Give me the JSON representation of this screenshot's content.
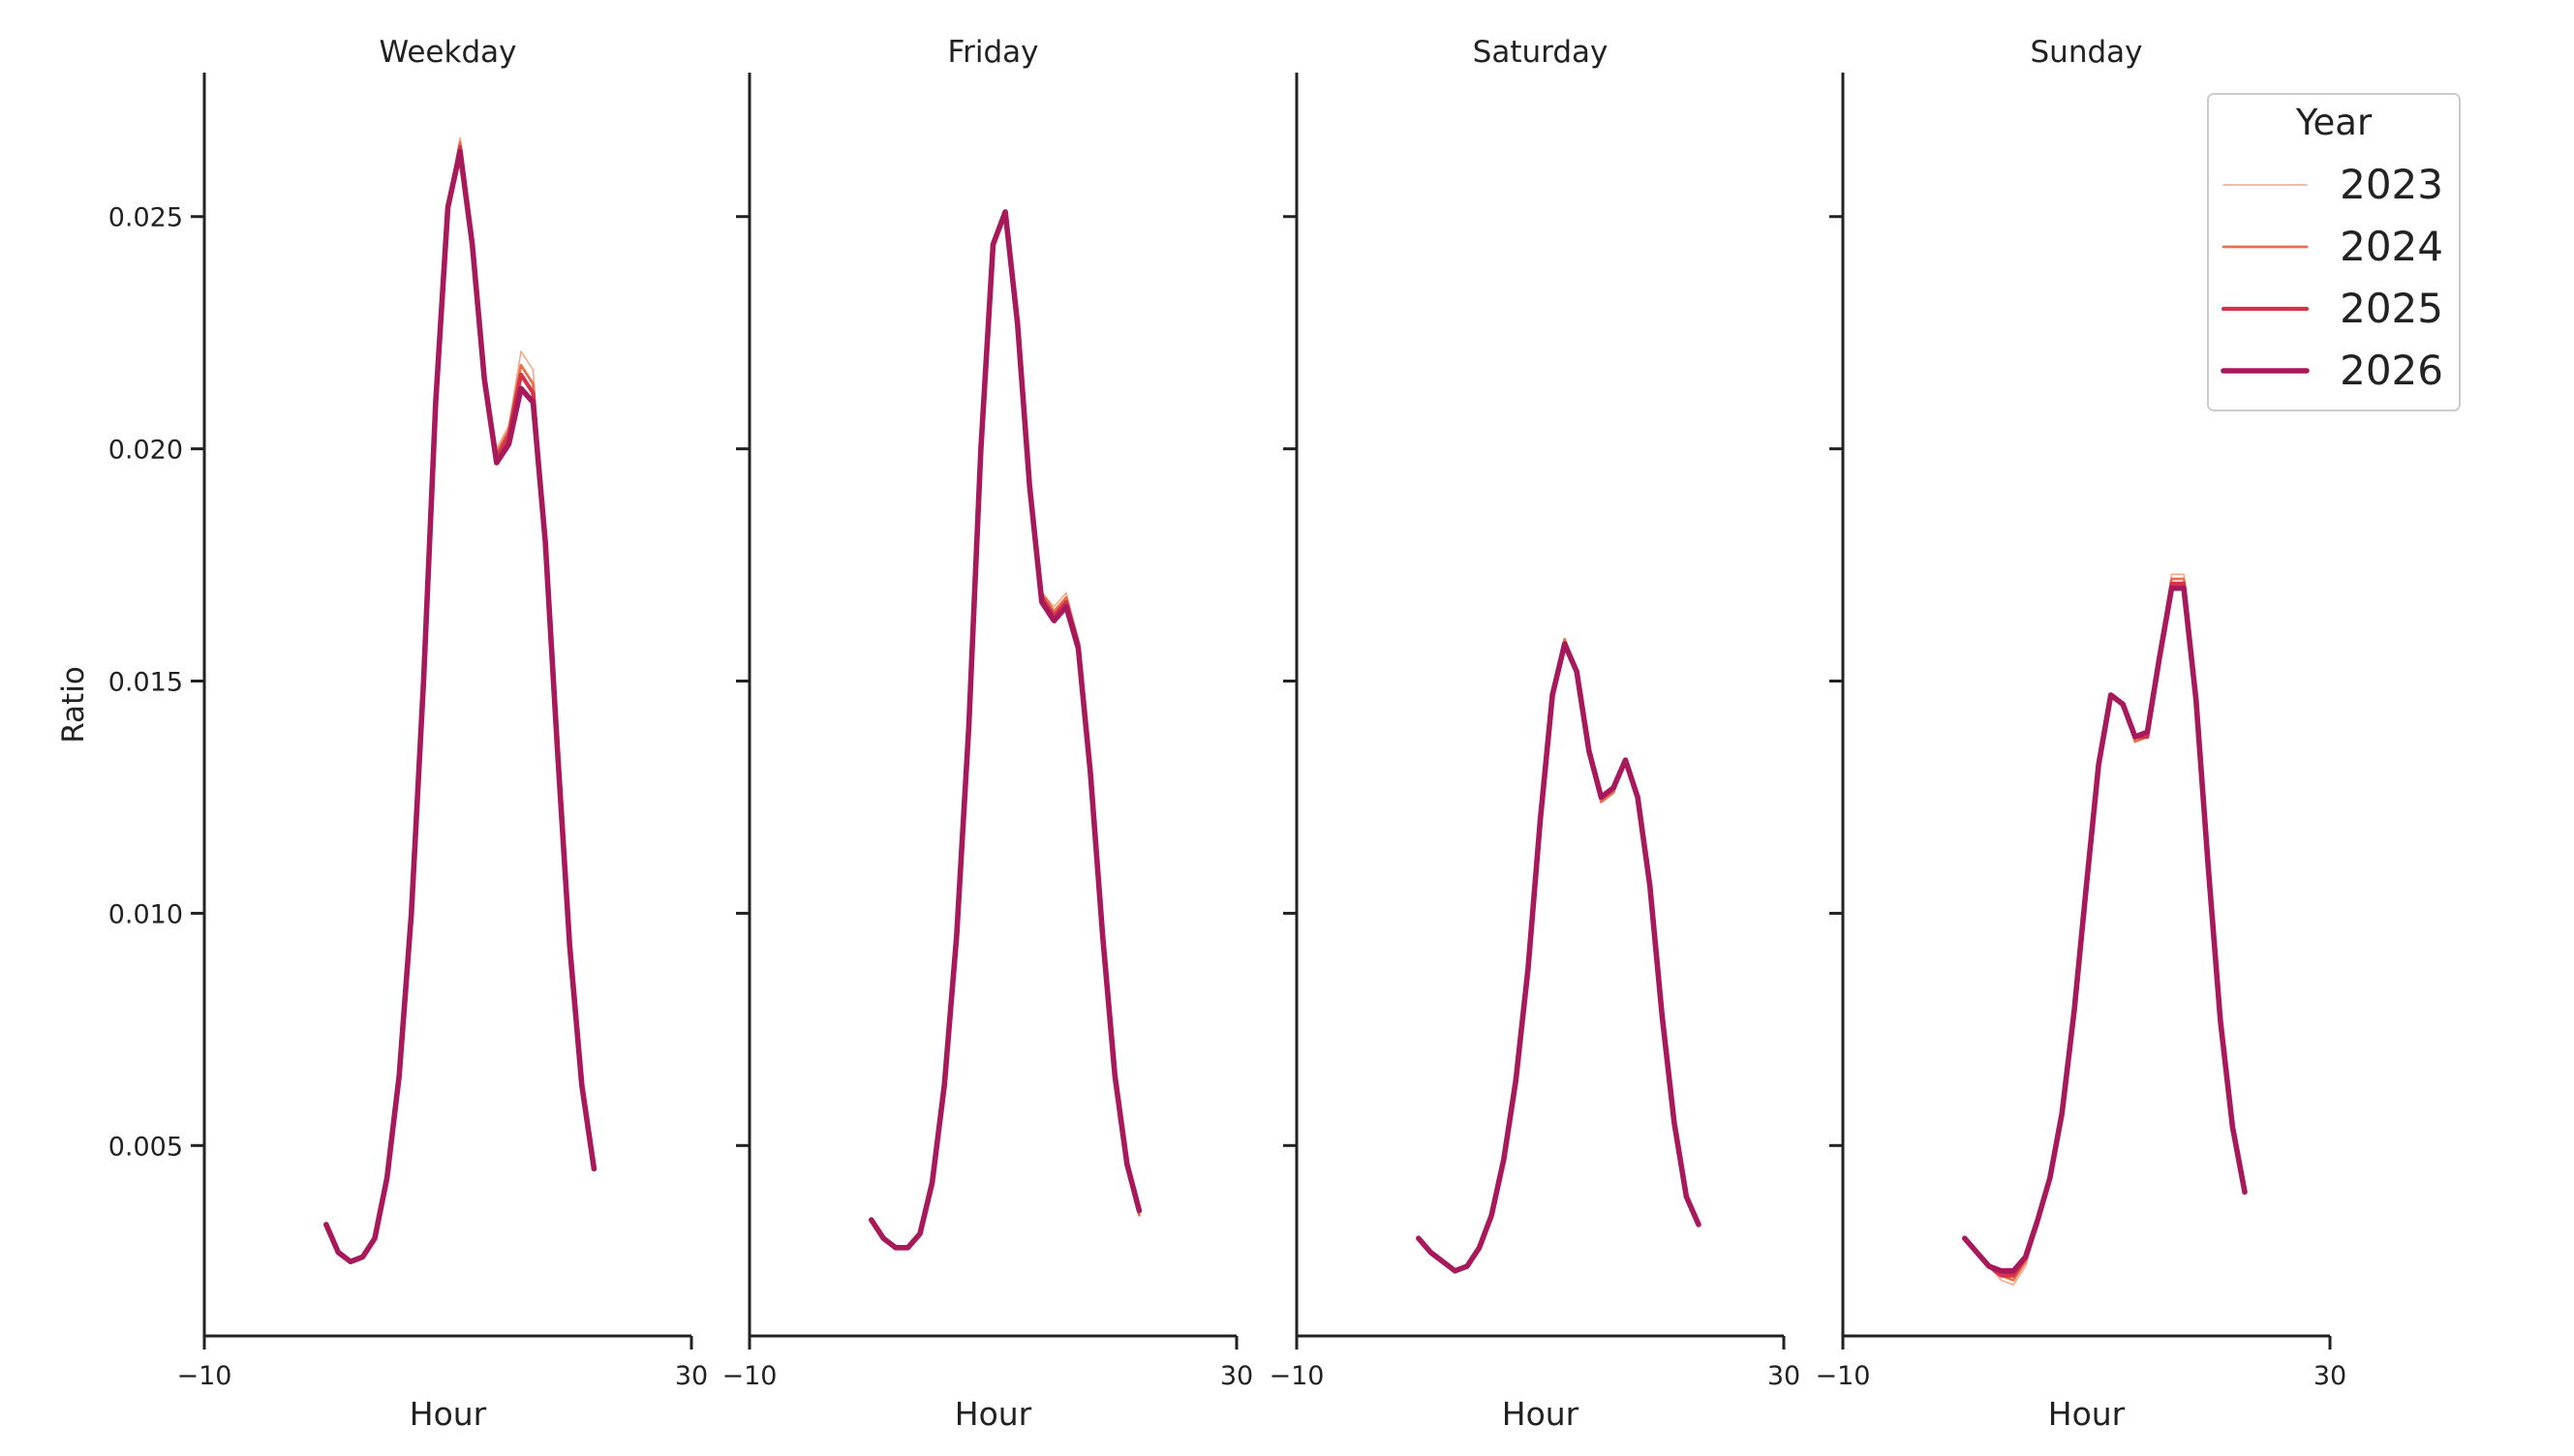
{
  "chart_data": {
    "type": "line",
    "ylabel": "Ratio",
    "ylim": [
      0.0009,
      0.0281
    ],
    "yticks": [
      0.005,
      0.01,
      0.015,
      0.02,
      0.025
    ],
    "ytick_labels": [
      "0.005",
      "0.010",
      "0.015",
      "0.020",
      "0.025"
    ],
    "xlim": [
      -10,
      30
    ],
    "xticks": [
      -10,
      30
    ],
    "xtick_labels": [
      "−10",
      "30"
    ],
    "legend": {
      "title": "Year",
      "placement": "top-right",
      "entries": [
        {
          "label": "2023",
          "color": "#f4a582",
          "width": 1.5
        },
        {
          "label": "2024",
          "color": "#e8704a",
          "width": 2.8
        },
        {
          "label": "2025",
          "color": "#d6334a",
          "width": 4.2
        },
        {
          "label": "2026",
          "color": "#a8195c",
          "width": 5.6
        }
      ]
    },
    "panels": [
      {
        "title": "Weekday",
        "xlabel": "Hour",
        "series": [
          {
            "name": "2023",
            "values": [
              0.0033,
              0.0027,
              0.0025,
              0.0026,
              0.003,
              0.0043,
              0.0065,
              0.01,
              0.015,
              0.021,
              0.0252,
              0.0267,
              0.0244,
              0.0215,
              0.02,
              0.0205,
              0.0221,
              0.0217,
              0.018,
              0.0135,
              0.0093,
              0.0063,
              0.0045
            ]
          },
          {
            "name": "2024",
            "values": [
              0.0033,
              0.0027,
              0.0025,
              0.0026,
              0.003,
              0.0043,
              0.0065,
              0.01,
              0.015,
              0.021,
              0.0252,
              0.0266,
              0.0244,
              0.0215,
              0.0199,
              0.0204,
              0.0218,
              0.0214,
              0.018,
              0.0135,
              0.0093,
              0.0063,
              0.0045
            ]
          },
          {
            "name": "2025",
            "values": [
              0.0033,
              0.0027,
              0.0025,
              0.0026,
              0.003,
              0.0043,
              0.0065,
              0.01,
              0.015,
              0.021,
              0.0252,
              0.0265,
              0.0244,
              0.0215,
              0.0198,
              0.0203,
              0.0216,
              0.0212,
              0.018,
              0.0135,
              0.0093,
              0.0063,
              0.0045
            ]
          },
          {
            "name": "2026",
            "values": [
              0.0033,
              0.0027,
              0.0025,
              0.0026,
              0.003,
              0.0043,
              0.0065,
              0.01,
              0.015,
              0.021,
              0.0252,
              0.0264,
              0.0244,
              0.0215,
              0.0197,
              0.0201,
              0.0213,
              0.021,
              0.018,
              0.0135,
              0.0093,
              0.0063,
              0.0045
            ]
          }
        ]
      },
      {
        "title": "Friday",
        "xlabel": "Hour",
        "series": [
          {
            "name": "2023",
            "values": [
              0.0034,
              0.003,
              0.0028,
              0.0028,
              0.0031,
              0.0042,
              0.0063,
              0.0095,
              0.014,
              0.02,
              0.0244,
              0.0251,
              0.0227,
              0.0192,
              0.0169,
              0.0166,
              0.0169,
              0.0159,
              0.013,
              0.0095,
              0.0065,
              0.0046,
              0.0035
            ]
          },
          {
            "name": "2024",
            "values": [
              0.0034,
              0.003,
              0.0028,
              0.0028,
              0.0031,
              0.0042,
              0.0063,
              0.0095,
              0.014,
              0.02,
              0.0244,
              0.0251,
              0.0227,
              0.0192,
              0.0169,
              0.0165,
              0.0168,
              0.0158,
              0.013,
              0.0095,
              0.0065,
              0.0046,
              0.0035
            ]
          },
          {
            "name": "2025",
            "values": [
              0.0034,
              0.003,
              0.0028,
              0.0028,
              0.0031,
              0.0042,
              0.0063,
              0.0095,
              0.014,
              0.02,
              0.0244,
              0.0251,
              0.0227,
              0.0192,
              0.0168,
              0.0164,
              0.0167,
              0.0158,
              0.013,
              0.0095,
              0.0065,
              0.0046,
              0.0036
            ]
          },
          {
            "name": "2026",
            "values": [
              0.0034,
              0.003,
              0.0028,
              0.0028,
              0.0031,
              0.0042,
              0.0063,
              0.0095,
              0.014,
              0.02,
              0.0244,
              0.0251,
              0.0227,
              0.0192,
              0.0167,
              0.0163,
              0.0166,
              0.0157,
              0.013,
              0.0095,
              0.0065,
              0.0046,
              0.0036
            ]
          }
        ]
      },
      {
        "title": "Saturday",
        "xlabel": "Hour",
        "series": [
          {
            "name": "2023",
            "values": [
              0.003,
              0.0027,
              0.0025,
              0.0023,
              0.0024,
              0.0028,
              0.0035,
              0.0047,
              0.0064,
              0.0088,
              0.012,
              0.0147,
              0.0159,
              0.0152,
              0.0135,
              0.0124,
              0.0126,
              0.0133,
              0.0125,
              0.0106,
              0.0078,
              0.0055,
              0.0039,
              0.0033
            ]
          },
          {
            "name": "2024",
            "values": [
              0.003,
              0.0027,
              0.0025,
              0.0023,
              0.0024,
              0.0028,
              0.0035,
              0.0047,
              0.0064,
              0.0088,
              0.012,
              0.0147,
              0.0159,
              0.0152,
              0.0135,
              0.0124,
              0.0126,
              0.0133,
              0.0125,
              0.0106,
              0.0078,
              0.0055,
              0.0039,
              0.0033
            ]
          },
          {
            "name": "2025",
            "values": [
              0.003,
              0.0027,
              0.0025,
              0.0023,
              0.0024,
              0.0028,
              0.0035,
              0.0047,
              0.0064,
              0.0088,
              0.012,
              0.0147,
              0.0158,
              0.0152,
              0.0135,
              0.0125,
              0.0127,
              0.0133,
              0.0125,
              0.0106,
              0.0078,
              0.0055,
              0.0039,
              0.0033
            ]
          },
          {
            "name": "2026",
            "values": [
              0.003,
              0.0027,
              0.0025,
              0.0023,
              0.0024,
              0.0028,
              0.0035,
              0.0047,
              0.0064,
              0.0088,
              0.012,
              0.0147,
              0.0158,
              0.0152,
              0.0135,
              0.0125,
              0.0127,
              0.0133,
              0.0125,
              0.0106,
              0.0078,
              0.0055,
              0.0039,
              0.0033
            ]
          }
        ]
      },
      {
        "title": "Sunday",
        "xlabel": "Hour",
        "series": [
          {
            "name": "2023",
            "values": [
              0.003,
              0.0027,
              0.0024,
              0.0021,
              0.002,
              0.0024,
              0.0033,
              0.0043,
              0.0057,
              0.0079,
              0.0106,
              0.0132,
              0.0147,
              0.0145,
              0.0137,
              0.0138,
              0.0155,
              0.0173,
              0.0173,
              0.0146,
              0.011,
              0.0077,
              0.0054,
              0.004
            ]
          },
          {
            "name": "2024",
            "values": [
              0.003,
              0.0027,
              0.0024,
              0.0022,
              0.0021,
              0.0025,
              0.0033,
              0.0043,
              0.0057,
              0.0079,
              0.0106,
              0.0132,
              0.0147,
              0.0145,
              0.0137,
              0.0138,
              0.0155,
              0.0172,
              0.0172,
              0.0146,
              0.011,
              0.0077,
              0.0054,
              0.004
            ]
          },
          {
            "name": "2025",
            "values": [
              0.003,
              0.0027,
              0.0024,
              0.0022,
              0.0022,
              0.0026,
              0.0034,
              0.0043,
              0.0057,
              0.0079,
              0.0106,
              0.0132,
              0.0147,
              0.0145,
              0.0138,
              0.0138,
              0.0155,
              0.0171,
              0.0171,
              0.0146,
              0.011,
              0.0077,
              0.0054,
              0.004
            ]
          },
          {
            "name": "2026",
            "values": [
              0.003,
              0.0027,
              0.0024,
              0.0023,
              0.0023,
              0.0026,
              0.0034,
              0.0043,
              0.0057,
              0.0079,
              0.0106,
              0.0132,
              0.0147,
              0.0145,
              0.0138,
              0.0139,
              0.0155,
              0.017,
              0.017,
              0.0146,
              0.011,
              0.0077,
              0.0054,
              0.004
            ]
          }
        ]
      }
    ]
  }
}
